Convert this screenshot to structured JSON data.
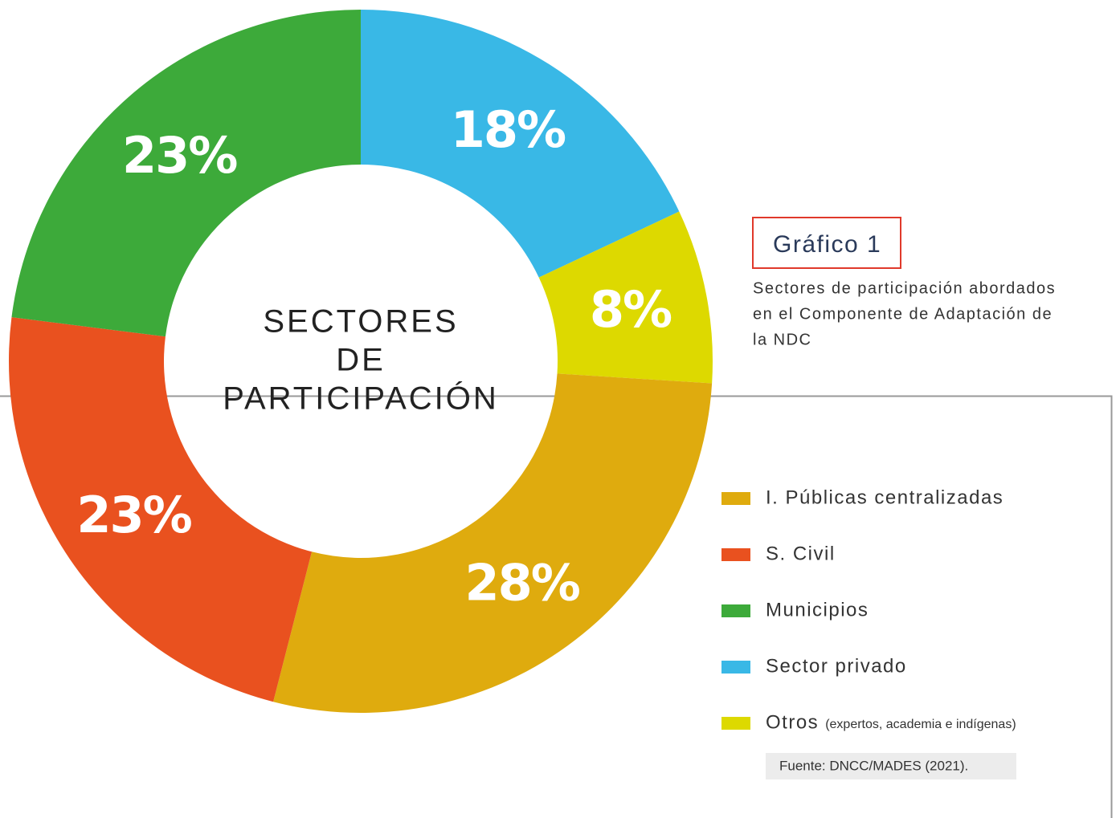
{
  "chart_data": {
    "type": "donut",
    "title": "Gráfico 1",
    "subtitle": [
      "Sectores de participación abordados",
      "en el Componente de Adaptación de",
      "la NDC"
    ],
    "center_label": [
      "SECTORES",
      "DE",
      "PARTICIPACIÓN"
    ],
    "categories": [
      "I. Públicas centralizadas",
      "S. Civil",
      "Municipios",
      "Sector privado",
      "Otros"
    ],
    "legend_note": "(expertos, academia e indígenas)",
    "values": [
      28,
      23,
      23,
      18,
      8
    ],
    "value_labels": [
      "28%",
      "23%",
      "23%",
      "18%",
      "8%"
    ],
    "colors": [
      "#dfab0e",
      "#e9511f",
      "#3daa3a",
      "#39b8e6",
      "#ddd900"
    ],
    "source": "Fuente: DNCC/MADES (2021)."
  }
}
